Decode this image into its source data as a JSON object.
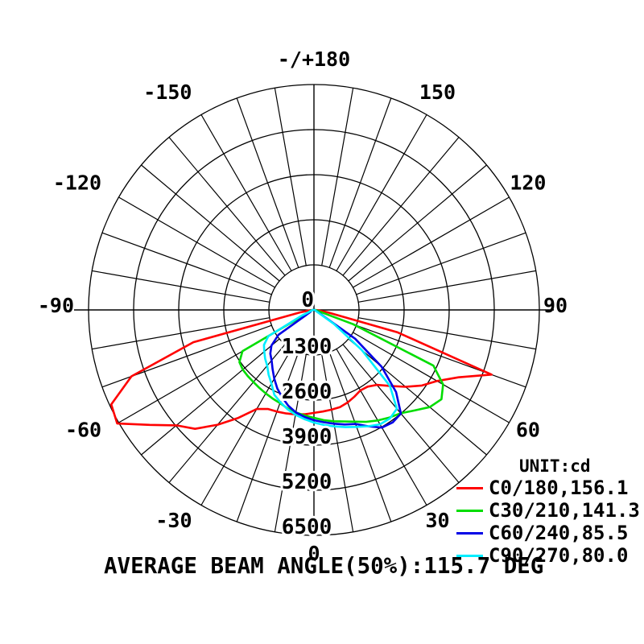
{
  "chart_data": {
    "type": "line",
    "subtype": "polar-photometric-intensity",
    "unit_label": "UNIT:cd",
    "footer": "AVERAGE BEAM ANGLE(50%):115.7 DEG",
    "radial_max": 6500,
    "radial_ticks": [
      0,
      1300,
      2600,
      3900,
      5200,
      6500
    ],
    "angle_step_deg": 10,
    "grid_color": "#000000",
    "angle_labels": [
      {
        "deg": 0,
        "label": "0"
      },
      {
        "deg": 30,
        "label": "30"
      },
      {
        "deg": 60,
        "label": "60"
      },
      {
        "deg": 90,
        "label": "90"
      },
      {
        "deg": 120,
        "label": "120"
      },
      {
        "deg": 150,
        "label": "150"
      },
      {
        "deg": 180,
        "label": "-/+180"
      },
      {
        "deg": -150,
        "label": "-150"
      },
      {
        "deg": -120,
        "label": "-120"
      },
      {
        "deg": -90,
        "label": "-90"
      },
      {
        "deg": -60,
        "label": "-60"
      },
      {
        "deg": -30,
        "label": "-30"
      }
    ],
    "series": [
      {
        "id": "c0-180",
        "label": "C0/180,156.1",
        "color": "#ff0000",
        "points": [
          [
            -90,
            30
          ],
          [
            -85,
            120
          ],
          [
            -80,
            400
          ],
          [
            -75,
            3600
          ],
          [
            -70,
            5600
          ],
          [
            -65,
            6450
          ],
          [
            -60,
            6550
          ],
          [
            -55,
            5780
          ],
          [
            -50,
            5180
          ],
          [
            -45,
            4850
          ],
          [
            -40,
            4320
          ],
          [
            -35,
            3800
          ],
          [
            -30,
            3300
          ],
          [
            -25,
            3150
          ],
          [
            -20,
            3120
          ],
          [
            -15,
            3090
          ],
          [
            -10,
            3060
          ],
          [
            -5,
            3020
          ],
          [
            0,
            2970
          ],
          [
            5,
            2940
          ],
          [
            10,
            2920
          ],
          [
            15,
            2900
          ],
          [
            20,
            2840
          ],
          [
            25,
            2760
          ],
          [
            30,
            2680
          ],
          [
            35,
            2700
          ],
          [
            40,
            2820
          ],
          [
            45,
            3100
          ],
          [
            50,
            3450
          ],
          [
            55,
            3800
          ],
          [
            60,
            4100
          ],
          [
            65,
            4600
          ],
          [
            70,
            5450
          ],
          [
            75,
            2500
          ],
          [
            80,
            400
          ],
          [
            85,
            120
          ],
          [
            90,
            30
          ]
        ]
      },
      {
        "id": "c30-210",
        "label": "C30/210,141.3",
        "color": "#00dd00",
        "points": [
          [
            -90,
            20
          ],
          [
            -85,
            50
          ],
          [
            -80,
            90
          ],
          [
            -75,
            120
          ],
          [
            -70,
            140
          ],
          [
            -65,
            160
          ],
          [
            -60,
            2380
          ],
          [
            -55,
            2625
          ],
          [
            -50,
            2680
          ],
          [
            -45,
            2700
          ],
          [
            -40,
            2715
          ],
          [
            -35,
            2745
          ],
          [
            -30,
            2780
          ],
          [
            -25,
            2820
          ],
          [
            -20,
            2860
          ],
          [
            -15,
            2940
          ],
          [
            -10,
            3000
          ],
          [
            -5,
            3055
          ],
          [
            0,
            3110
          ],
          [
            5,
            3190
          ],
          [
            10,
            3260
          ],
          [
            15,
            3330
          ],
          [
            20,
            3430
          ],
          [
            25,
            3560
          ],
          [
            30,
            3680
          ],
          [
            35,
            3790
          ],
          [
            40,
            3890
          ],
          [
            45,
            4100
          ],
          [
            50,
            4360
          ],
          [
            55,
            4490
          ],
          [
            60,
            4300
          ],
          [
            65,
            3800
          ],
          [
            70,
            1200
          ],
          [
            75,
            120
          ],
          [
            80,
            80
          ],
          [
            85,
            50
          ],
          [
            90,
            20
          ]
        ]
      },
      {
        "id": "c60-240",
        "label": "C60/240,85.5",
        "color": "#0000e6",
        "points": [
          [
            -90,
            20
          ],
          [
            -85,
            40
          ],
          [
            -80,
            60
          ],
          [
            -75,
            80
          ],
          [
            -70,
            90
          ],
          [
            -65,
            100
          ],
          [
            -60,
            120
          ],
          [
            -55,
            1250
          ],
          [
            -50,
            1600
          ],
          [
            -45,
            1780
          ],
          [
            -40,
            1900
          ],
          [
            -35,
            2080
          ],
          [
            -30,
            2290
          ],
          [
            -25,
            2500
          ],
          [
            -20,
            2680
          ],
          [
            -15,
            2860
          ],
          [
            -10,
            3000
          ],
          [
            -5,
            3100
          ],
          [
            0,
            3180
          ],
          [
            5,
            3250
          ],
          [
            10,
            3330
          ],
          [
            15,
            3420
          ],
          [
            20,
            3500
          ],
          [
            25,
            3700
          ],
          [
            30,
            3920
          ],
          [
            35,
            3960
          ],
          [
            40,
            3900
          ],
          [
            45,
            3350
          ],
          [
            50,
            2550
          ],
          [
            55,
            1450
          ],
          [
            60,
            150
          ],
          [
            65,
            60
          ],
          [
            70,
            50
          ],
          [
            75,
            40
          ],
          [
            80,
            30
          ],
          [
            85,
            25
          ],
          [
            90,
            20
          ]
        ]
      },
      {
        "id": "c90-270",
        "label": "C90/270,80.0",
        "color": "#00eeff",
        "points": [
          [
            -90,
            20
          ],
          [
            -85,
            40
          ],
          [
            -80,
            60
          ],
          [
            -75,
            80
          ],
          [
            -70,
            100
          ],
          [
            -65,
            400
          ],
          [
            -60,
            1520
          ],
          [
            -55,
            1760
          ],
          [
            -50,
            1870
          ],
          [
            -45,
            1990
          ],
          [
            -40,
            2100
          ],
          [
            -35,
            2280
          ],
          [
            -30,
            2450
          ],
          [
            -25,
            2700
          ],
          [
            -20,
            2830
          ],
          [
            -15,
            2960
          ],
          [
            -10,
            3070
          ],
          [
            -5,
            3160
          ],
          [
            0,
            3250
          ],
          [
            5,
            3330
          ],
          [
            10,
            3410
          ],
          [
            15,
            3500
          ],
          [
            20,
            3590
          ],
          [
            25,
            3700
          ],
          [
            30,
            3810
          ],
          [
            35,
            3820
          ],
          [
            40,
            3720
          ],
          [
            45,
            3100
          ],
          [
            50,
            1800
          ],
          [
            55,
            700
          ],
          [
            60,
            100
          ],
          [
            65,
            60
          ],
          [
            70,
            50
          ],
          [
            75,
            40
          ],
          [
            80,
            30
          ],
          [
            85,
            25
          ],
          [
            90,
            20
          ]
        ]
      }
    ],
    "layout": {
      "legend_position": "bottom-right",
      "zero_angle_position": "bottom",
      "grid": true
    }
  }
}
